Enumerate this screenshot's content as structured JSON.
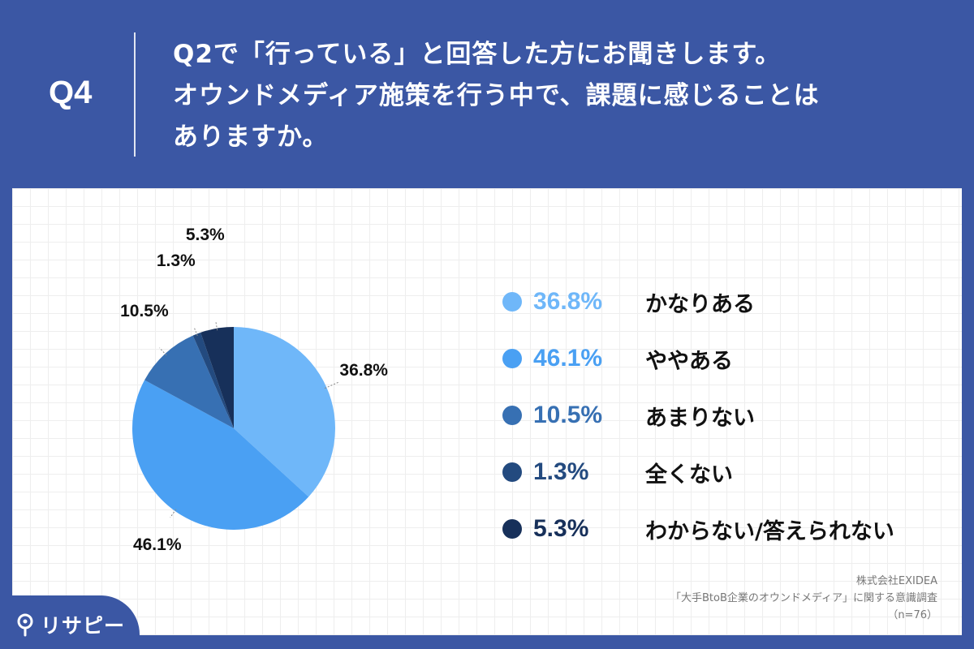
{
  "header": {
    "q_number": "Q4",
    "question_lines": [
      "Q2で「行っている」と回答した方にお聞きします。",
      "オウンドメディア施策を行う中で、課題に感じることは",
      "ありますか。"
    ]
  },
  "chart_data": {
    "type": "pie",
    "unit": "%",
    "slices": [
      {
        "label": "かなりある",
        "value": 36.8,
        "display": "36.8%",
        "color": "#6fb7f9"
      },
      {
        "label": "ややある",
        "value": 46.1,
        "display": "46.1%",
        "color": "#4aa0f3"
      },
      {
        "label": "あまりない",
        "value": 10.5,
        "display": "10.5%",
        "color": "#3770b3"
      },
      {
        "label": "全くない",
        "value": 1.3,
        "display": "1.3%",
        "color": "#234a7f"
      },
      {
        "label": "わからない/答えられない",
        "value": 5.3,
        "display": "5.3%",
        "color": "#17305a"
      }
    ]
  },
  "source": {
    "company": "株式会社EXIDEA",
    "survey": "「大手BtoB企業のオウンドメディア」に関する意識調査",
    "sample": "（n=76）"
  },
  "brand": {
    "name": "リサピー",
    "icon": "pin-icon"
  }
}
